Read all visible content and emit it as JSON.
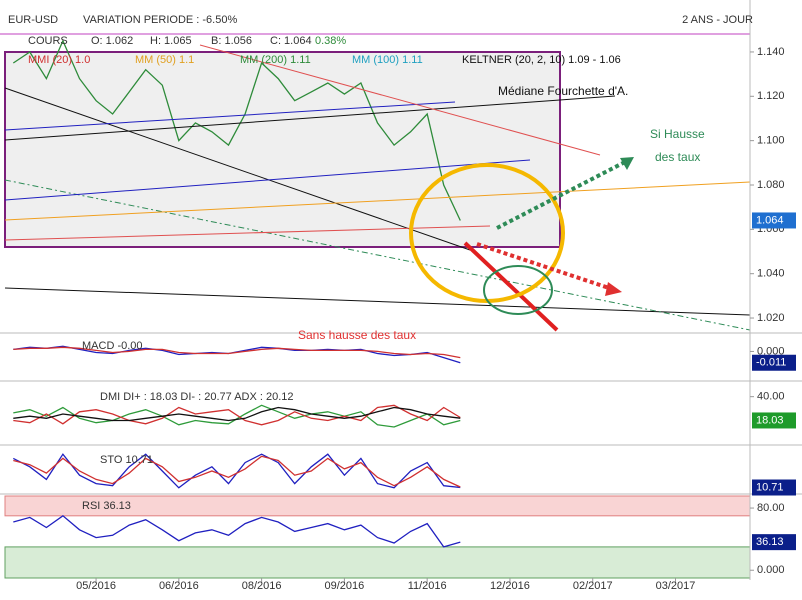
{
  "chart_data": [
    {
      "type": "line",
      "title": "EUR-USD",
      "subtitle": "VARIATION PERIODE : -6.50%",
      "period": "2 ANS - JOUR",
      "legend_texts": [
        "O: 1.062",
        "H: 1.065",
        "B: 1.056",
        "C: 1.064",
        "0.38%",
        "MMI (20) 1.0",
        "MM (50) 1.1",
        "MM (200) 1.11",
        "MM (100) 1.11",
        "KELTNER (20, 2, 10)  1.09 - 1.06"
      ],
      "annotations": [
        "Médiane Fourchette d'A.",
        "Si Hausse",
        "des taux",
        "Sans hausse des taux"
      ],
      "series": [
        {
          "name": "COURS",
          "color": "#2e8b3a",
          "values": [
            1.135,
            1.14,
            1.128,
            1.145,
            1.128,
            1.118,
            1.112,
            1.122,
            1.132,
            1.125,
            1.1,
            1.108,
            1.104,
            1.098,
            1.112,
            1.135,
            1.128,
            1.118,
            1.122,
            1.126,
            1.121,
            1.126,
            1.108,
            1.098,
            1.104,
            1.112,
            1.08,
            1.064,
            null,
            null,
            null,
            null,
            null,
            null,
            null,
            null,
            null,
            null,
            null,
            null,
            null,
            null,
            null,
            null,
            null
          ]
        }
      ],
      "ylim": [
        1.0146,
        1.1499
      ],
      "yticks": [
        {
          "value": 1.14,
          "label": "1.140"
        },
        {
          "value": 1.12,
          "label": "1.120"
        },
        {
          "value": 1.1,
          "label": "1.100"
        },
        {
          "value": 1.08,
          "label": "1.080"
        },
        {
          "value": 1.06,
          "label": "1.060"
        },
        {
          "value": 1.04,
          "label": "1.040"
        },
        {
          "value": 1.02,
          "label": "1.020"
        }
      ]
    },
    {
      "type": "line",
      "title": "MACD -0.00",
      "series": [
        {
          "color": "#2020c0",
          "values": [
            0.002,
            0.004,
            0.003,
            0.005,
            0.002,
            -0.001,
            -0.002,
            0.001,
            0.003,
            0.001,
            -0.003,
            -0.002,
            -0.001,
            -0.002,
            0.001,
            0.004,
            0.003,
            0.001,
            0.001,
            0.002,
            0.001,
            0.002,
            -0.002,
            -0.004,
            -0.003,
            -0.001,
            -0.006,
            -0.011,
            null,
            null,
            null,
            null,
            null,
            null,
            null,
            null,
            null,
            null,
            null,
            null,
            null,
            null,
            null,
            null,
            null
          ]
        },
        {
          "color": "#d03030",
          "values": [
            0.002,
            0.003,
            0.003,
            0.004,
            0.003,
            0.001,
            -0.001,
            0,
            0.002,
            0.002,
            -0.001,
            -0.002,
            -0.002,
            -0.002,
            0,
            0.002,
            0.003,
            0.002,
            0.001,
            0.001,
            0.001,
            0.001,
            0,
            -0.002,
            -0.003,
            -0.002,
            -0.003,
            -0.006,
            null,
            null,
            null,
            null,
            null,
            null,
            null,
            null,
            null,
            null,
            null,
            null,
            null,
            null,
            null,
            null,
            null
          ]
        }
      ],
      "ylim": [
        -0.02,
        0.015
      ],
      "yticks": [
        {
          "value": 0,
          "label": "0.000"
        }
      ],
      "tag_color": "#0b1f8a"
    },
    {
      "type": "line",
      "title": "DMI  DI+ : 18.03  DI- : 20.77  ADX : 20.12",
      "series": [
        {
          "color": "#2e9b3a",
          "values": [
            25,
            28,
            22,
            30,
            20,
            16,
            18,
            24,
            28,
            22,
            14,
            18,
            16,
            15,
            24,
            32,
            26,
            20,
            24,
            26,
            22,
            26,
            14,
            12,
            18,
            24,
            14,
            18.03,
            null,
            null,
            null,
            null,
            null,
            null,
            null,
            null,
            null,
            null,
            null,
            null,
            null,
            null,
            null,
            null,
            null
          ]
        },
        {
          "color": "#d03030",
          "values": [
            18,
            16,
            24,
            15,
            26,
            28,
            24,
            18,
            15,
            20,
            30,
            24,
            26,
            28,
            18,
            14,
            18,
            26,
            20,
            18,
            22,
            18,
            30,
            32,
            24,
            18,
            30,
            20.77,
            null,
            null,
            null,
            null,
            null,
            null,
            null,
            null,
            null,
            null,
            null,
            null,
            null,
            null,
            null,
            null,
            null
          ]
        },
        {
          "color": "#111111",
          "values": [
            20,
            22,
            20,
            24,
            22,
            20,
            18,
            18,
            20,
            22,
            24,
            22,
            20,
            18,
            20,
            26,
            30,
            28,
            24,
            22,
            20,
            22,
            26,
            30,
            28,
            24,
            22,
            20.12,
            null,
            null,
            null,
            null,
            null,
            null,
            null,
            null,
            null,
            null,
            null,
            null,
            null,
            null,
            null,
            null,
            null
          ]
        }
      ],
      "ylim": [
        0,
        48
      ],
      "yticks": [
        {
          "value": 40,
          "label": "40.00"
        }
      ],
      "tag_color": "#1e9b2a"
    },
    {
      "type": "line",
      "title": "STO  10.71",
      "series": [
        {
          "color": "#2020c0",
          "values": [
            80,
            60,
            30,
            90,
            40,
            20,
            15,
            60,
            90,
            50,
            10,
            40,
            60,
            20,
            70,
            90,
            70,
            20,
            60,
            90,
            40,
            80,
            20,
            10,
            50,
            70,
            15,
            10.71,
            null,
            null,
            null,
            null,
            null,
            null,
            null,
            null,
            null,
            null,
            null,
            null,
            null,
            null,
            null,
            null,
            null
          ]
        },
        {
          "color": "#d03030",
          "values": [
            75,
            65,
            45,
            80,
            50,
            30,
            20,
            45,
            80,
            60,
            25,
            35,
            50,
            35,
            55,
            85,
            75,
            40,
            50,
            80,
            55,
            70,
            35,
            15,
            35,
            60,
            30,
            12,
            null,
            null,
            null,
            null,
            null,
            null,
            null,
            null,
            null,
            null,
            null,
            null,
            null,
            null,
            null,
            null,
            null
          ]
        }
      ],
      "ylim": [
        0,
        100
      ],
      "yticks": [],
      "tag_color": "#0b1f8a"
    },
    {
      "type": "line",
      "title": "RSI  36.13",
      "categories": [
        null,
        null,
        null,
        null,
        null,
        "05/2016",
        null,
        null,
        null,
        null,
        "06/2016",
        null,
        null,
        null,
        null,
        "08/2016",
        null,
        null,
        null,
        null,
        "09/2016",
        null,
        null,
        null,
        null,
        "11/2016",
        null,
        null,
        null,
        null,
        "12/2016",
        null,
        null,
        null,
        null,
        "02/2017",
        null,
        null,
        null,
        null,
        "03/2017",
        null,
        null,
        null,
        null
      ],
      "series": [
        {
          "color": "#2020c0",
          "values": [
            62,
            68,
            55,
            70,
            52,
            42,
            45,
            58,
            65,
            52,
            38,
            48,
            52,
            45,
            60,
            68,
            62,
            50,
            55,
            60,
            52,
            58,
            42,
            35,
            50,
            60,
            30,
            36.13,
            null,
            null,
            null,
            null,
            null,
            null,
            null,
            null,
            null,
            null,
            null,
            null,
            null,
            null,
            null,
            null,
            null
          ]
        }
      ],
      "overbought": 70,
      "oversold": 30,
      "ylim": [
        -10,
        95.5
      ],
      "yticks": [
        {
          "value": 80,
          "label": "80.00"
        },
        {
          "value": 0,
          "label": "0.000"
        }
      ],
      "tag_color": "#0b1f8a"
    }
  ]
}
